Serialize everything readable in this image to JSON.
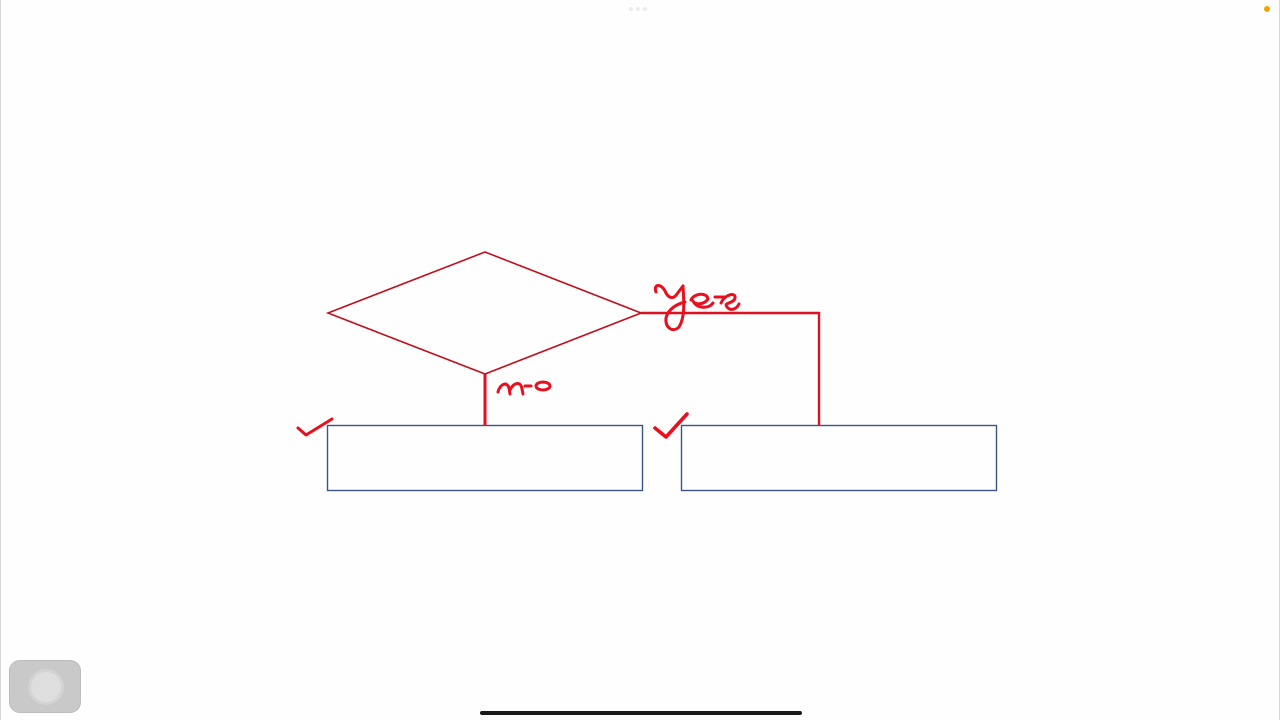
{
  "diagram": {
    "decision_no_label": "no",
    "decision_yes_label": "yes",
    "colors": {
      "ink": "#d0021b",
      "box_border": "#3b5587",
      "background": "#fefefe"
    }
  },
  "system": {
    "assistive_touch_icon": "assistive-touch-icon",
    "status_indicator_color": "#f0a400"
  }
}
